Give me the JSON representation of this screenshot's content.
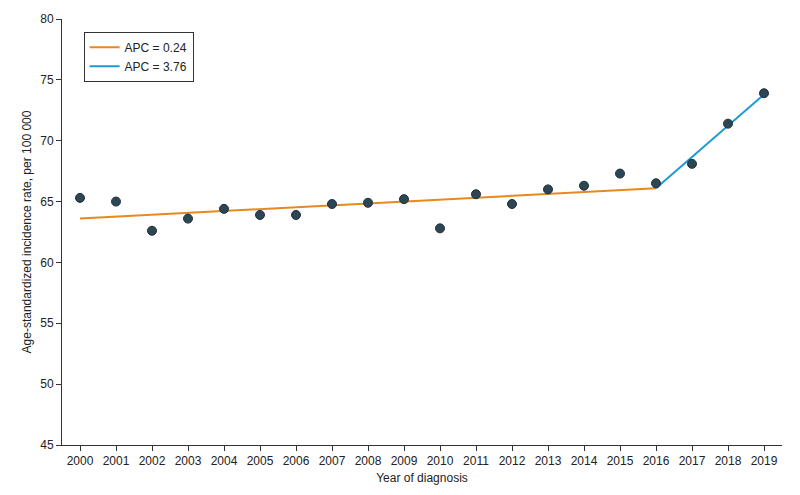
{
  "chart_data": {
    "type": "scatter",
    "x_label": "Year of diagnosis",
    "y_label": "Age-standardized incidence rate, per 100 000",
    "x": [
      2000,
      2001,
      2002,
      2003,
      2004,
      2005,
      2006,
      2007,
      2008,
      2009,
      2010,
      2011,
      2012,
      2013,
      2014,
      2015,
      2016,
      2017,
      2018,
      2019
    ],
    "values": [
      65.3,
      65.0,
      62.6,
      63.6,
      64.4,
      63.9,
      63.9,
      64.8,
      64.9,
      65.2,
      62.8,
      65.6,
      64.8,
      66.0,
      66.3,
      67.3,
      66.5,
      68.1,
      71.4,
      73.9
    ],
    "color": "#2d4654",
    "marker": "circle",
    "series": [
      {
        "name": "APC = 0.24",
        "type": "line",
        "color": "#e8891d",
        "x": [
          2000,
          2016
        ],
        "values": [
          63.6,
          66.1
        ]
      },
      {
        "name": "APC = 3.76",
        "type": "line",
        "color": "#1c9ad6",
        "x": [
          2016,
          2019
        ],
        "values": [
          66.1,
          73.8
        ]
      }
    ],
    "xlim": [
      1999.5,
      2019.5
    ],
    "xticks": [
      2000,
      2001,
      2002,
      2003,
      2004,
      2005,
      2006,
      2007,
      2008,
      2009,
      2010,
      2011,
      2012,
      2013,
      2014,
      2015,
      2016,
      2017,
      2018,
      2019
    ],
    "ylim": [
      45,
      80
    ],
    "yticks": [
      45,
      50,
      55,
      60,
      65,
      70,
      75,
      80
    ],
    "grid": false,
    "legend": "upper left"
  }
}
